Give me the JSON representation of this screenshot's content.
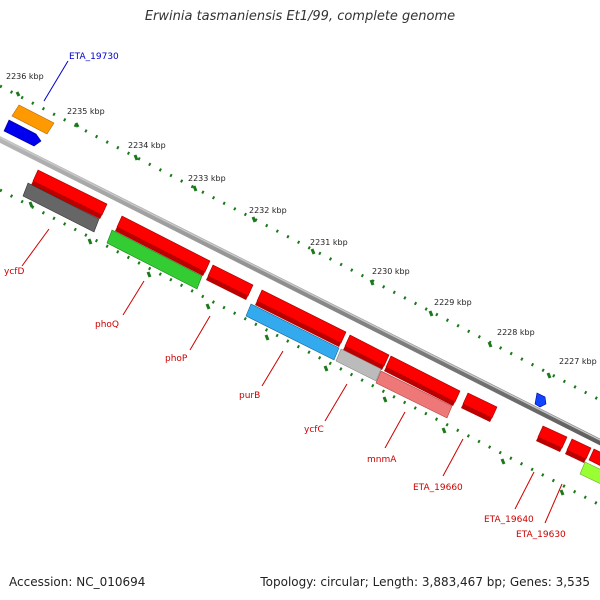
{
  "title": "Erwinia tasmaniensis Et1/99, complete genome",
  "footer": {
    "accession": "Accession: NC_010694",
    "summary": "Topology: circular; Length: 3,883,467 bp; Genes: 3,535"
  },
  "scale": {
    "ticks": [
      "2236 kbp",
      "2235 kbp",
      "2234 kbp",
      "2233 kbp",
      "2232 kbp",
      "2231 kbp",
      "2230 kbp",
      "2229 kbp",
      "2228 kbp",
      "2227 kbp"
    ]
  },
  "genes": {
    "eta_19730": "ETA_19730",
    "ycfd": "ycfD",
    "phoq": "phoQ",
    "phop": "phoP",
    "purb": "purB",
    "ycfc": "ycfC",
    "mnma": "mnmA",
    "eta_19660": "ETA_19660",
    "eta_19640": "ETA_19640",
    "eta_19630": "ETA_19630"
  },
  "colors": {
    "forward_gene": "#ff0000",
    "reverse_gene": "#ff0000",
    "label_red": "#cc0000",
    "label_blue": "#0000cc",
    "tick_green": "#1a7a1a",
    "backbone": "#8c8c8c",
    "orange_feature": "#ff9900",
    "blue_feature": "#0000ff",
    "gray_feature": "#666666",
    "green_feature": "#33cc33",
    "cyan_feature": "#33aaff",
    "lightgray_feature": "#bbbbbb",
    "pink_feature": "#ee7777",
    "lime_feature": "#99ff33"
  }
}
